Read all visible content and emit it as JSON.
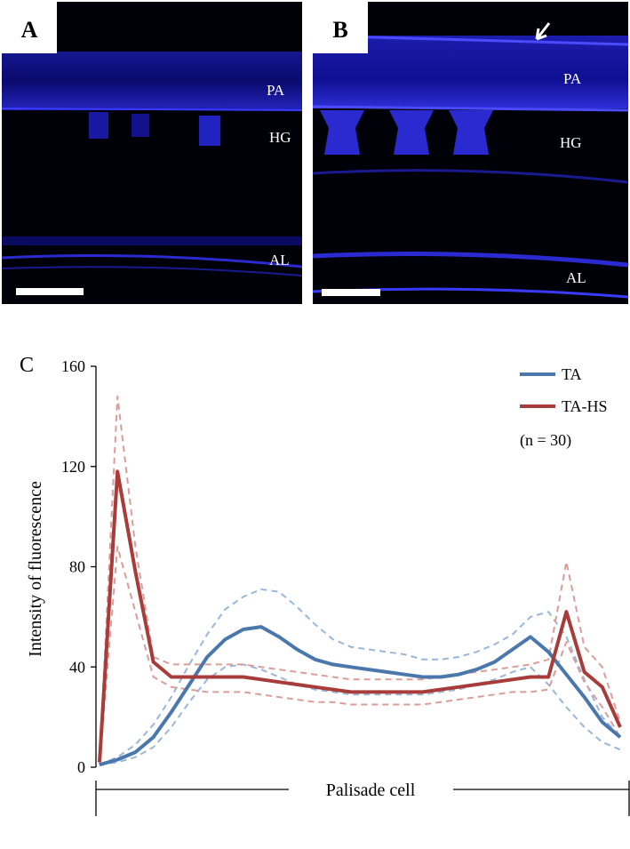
{
  "panels": [
    {
      "label": "A",
      "annotations": [
        "PA",
        "HG",
        "AL"
      ]
    },
    {
      "label": "B",
      "annotations": [
        "PA",
        "HG",
        "AL"
      ]
    }
  ],
  "chart_data": {
    "type": "line",
    "panel_label": "C",
    "ylabel": "Intensity of fluorescence",
    "xlabel": "Palisade cell",
    "annotation": "(n = 30)",
    "legend": "upper right",
    "grid": false,
    "ylim": [
      0,
      160
    ],
    "yticks": [
      0,
      40,
      80,
      120,
      160
    ],
    "series": [
      {
        "name": "TA",
        "color": "#4a78ad",
        "dash_color": "#9ab7d8",
        "values": [
          1,
          3,
          6,
          12,
          22,
          33,
          44,
          51,
          55,
          56,
          52,
          47,
          43,
          41,
          40,
          39,
          38,
          37,
          36,
          36,
          37,
          39,
          42,
          47,
          52,
          46,
          37,
          28,
          18,
          12
        ],
        "upper": [
          1,
          4,
          9,
          17,
          28,
          41,
          53,
          63,
          68,
          71,
          70,
          64,
          57,
          51,
          48,
          47,
          46,
          45,
          43,
          43,
          44,
          46,
          49,
          53,
          60,
          62,
          52,
          35,
          20,
          12
        ],
        "lower": [
          1,
          2,
          4,
          8,
          16,
          26,
          35,
          40,
          41,
          39,
          36,
          33,
          31,
          30,
          29,
          29,
          29,
          29,
          29,
          30,
          31,
          33,
          35,
          38,
          40,
          33,
          24,
          16,
          10,
          7
        ]
      },
      {
        "name": "TA-HS",
        "color": "#a83c3a",
        "dash_color": "#dc9d99",
        "values": [
          2,
          118,
          78,
          42,
          36,
          36,
          36,
          36,
          36,
          35,
          34,
          33,
          32,
          31,
          30,
          30,
          30,
          30,
          30,
          31,
          32,
          33,
          34,
          35,
          36,
          36,
          62,
          38,
          32,
          16
        ],
        "upper": [
          2,
          148,
          88,
          44,
          41,
          41,
          41,
          41,
          41,
          40,
          39,
          38,
          37,
          36,
          35,
          35,
          35,
          35,
          35,
          36,
          37,
          38,
          39,
          40,
          41,
          43,
          82,
          48,
          40,
          18
        ],
        "lower": [
          1,
          88,
          62,
          36,
          32,
          31,
          30,
          30,
          30,
          29,
          28,
          27,
          26,
          26,
          25,
          25,
          25,
          25,
          25,
          26,
          27,
          28,
          29,
          30,
          30,
          31,
          50,
          34,
          24,
          12
        ]
      }
    ]
  }
}
